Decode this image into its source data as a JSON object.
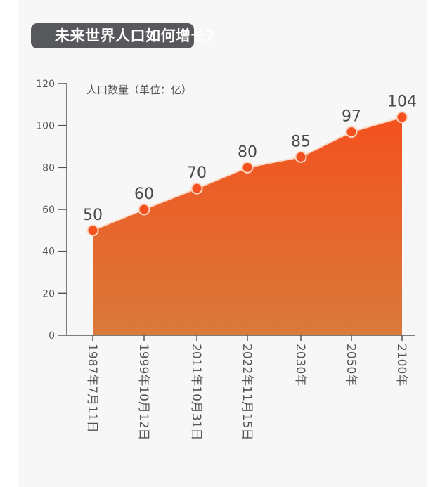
{
  "title": "未来世界人口如何增长?",
  "unit_label": "人口数量（单位：亿）",
  "colors": {
    "title_bg": "#56585b",
    "area_top": "#f4511e",
    "area_bottom": "#d97a3a",
    "point": "#f4511e",
    "point_ring": "#fbd6c2",
    "axis": "#555555",
    "label": "#555555"
  },
  "chart_data": {
    "type": "area",
    "title": "未来世界人口如何增长?",
    "ylabel": "人口数量（单位：亿）",
    "xlabel": "",
    "categories": [
      "1987年7月11日",
      "1999年10月12日",
      "2011年10月31日",
      "2022年11月15日",
      "2030年",
      "2050年",
      "2100年"
    ],
    "values": [
      50,
      60,
      70,
      80,
      85,
      97,
      104
    ],
    "data_labels": [
      "50",
      "60",
      "70",
      "80",
      "85",
      "97",
      "104"
    ],
    "ylim": [
      0,
      120
    ],
    "yticks": [
      0,
      20,
      40,
      60,
      80,
      100,
      120
    ],
    "grid": false,
    "legend": null,
    "x_label_orientation": "vertical"
  }
}
